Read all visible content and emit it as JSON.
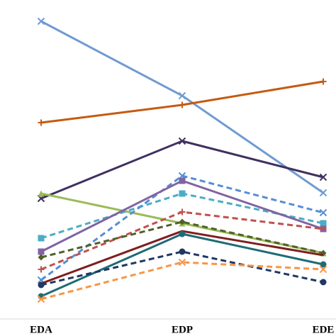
{
  "chart_data": {
    "type": "line",
    "categories": [
      "EDA",
      "EDP",
      "EDE"
    ],
    "ylim": [
      0,
      430
    ],
    "series": [
      {
        "color": "#6f9bd1",
        "marker": "x",
        "dashed": false,
        "values": [
          420,
          315,
          178
        ]
      },
      {
        "color": "#c55a11",
        "marker": "plus",
        "dashed": false,
        "values": [
          277,
          302,
          335
        ]
      },
      {
        "color": "#403060",
        "marker": "x",
        "dashed": false,
        "values": [
          170,
          251,
          200
        ]
      },
      {
        "color": "#9bbb59",
        "marker": "triangle",
        "dashed": false,
        "values": [
          177,
          135,
          93
        ]
      },
      {
        "color": "#4bacc6",
        "marker": "square",
        "dashed": true,
        "values": [
          114,
          177,
          135
        ]
      },
      {
        "color": "#558ed5",
        "marker": "x",
        "dashed": true,
        "values": [
          55,
          202,
          150
        ]
      },
      {
        "color": "#8064a2",
        "marker": "square",
        "dashed": false,
        "values": [
          95,
          195,
          127
        ]
      },
      {
        "color": "#c0504d",
        "marker": "plus",
        "dashed": true,
        "values": [
          70,
          151,
          127
        ]
      },
      {
        "color": "#4f6228",
        "marker": "diamond",
        "dashed": true,
        "values": [
          87,
          137,
          93
        ]
      },
      {
        "color": "#7f1f1f",
        "marker": "none",
        "dashed": false,
        "values": [
          50,
          124,
          90
        ]
      },
      {
        "color": "#1f6b75",
        "marker": "circle",
        "dashed": false,
        "values": [
          32,
          120,
          77
        ]
      },
      {
        "color": "#1f3864",
        "marker": "circle",
        "dashed": true,
        "values": [
          48,
          95,
          52
        ]
      },
      {
        "color": "#f79646",
        "marker": "x",
        "dashed": true,
        "values": [
          28,
          80,
          70
        ]
      }
    ]
  }
}
